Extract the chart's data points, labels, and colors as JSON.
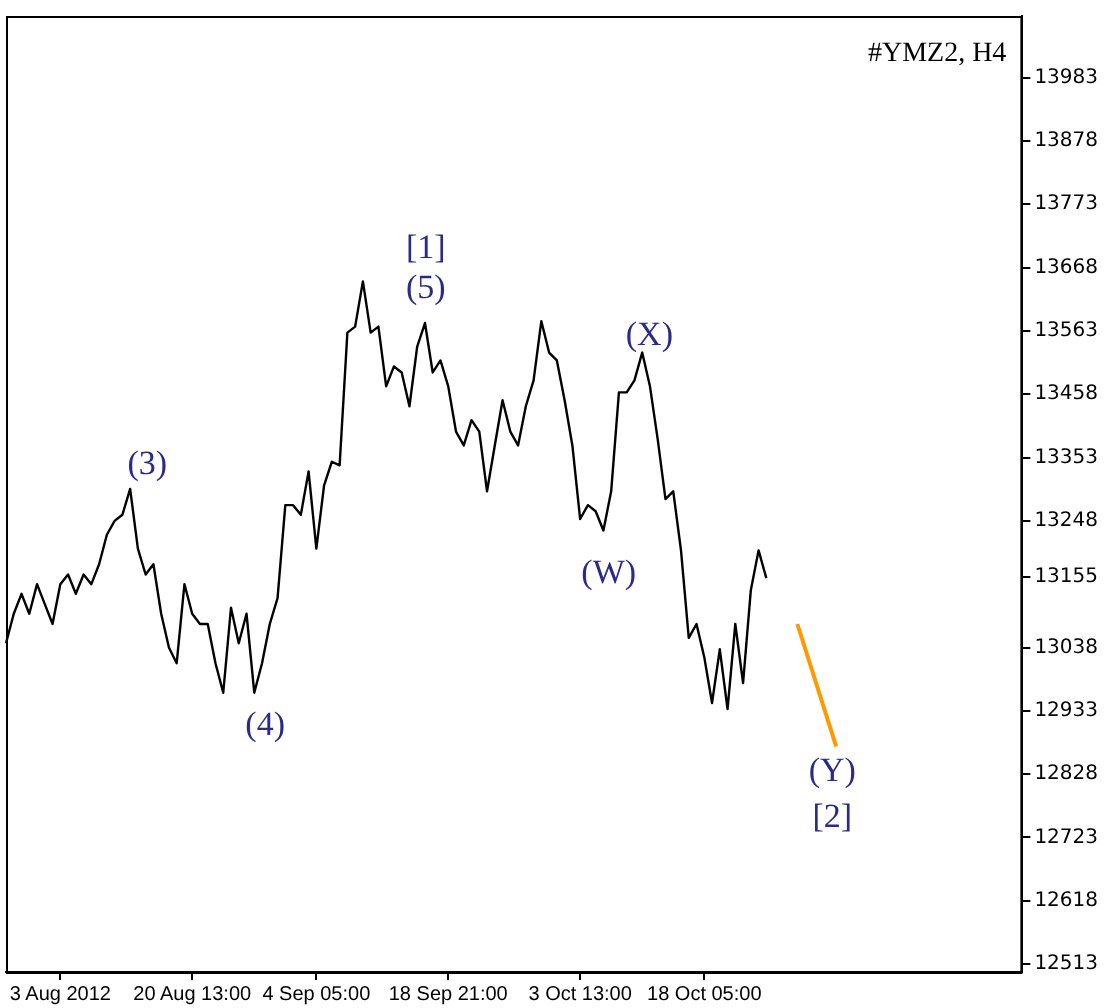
{
  "chart_data": {
    "type": "line",
    "title": "#YMZ2, H4",
    "categories": [
      null,
      null,
      null,
      null,
      null,
      null,
      null,
      "3 Aug 2012",
      null,
      null,
      null,
      null,
      null,
      null,
      null,
      null,
      null,
      null,
      null,
      null,
      null,
      null,
      null,
      null,
      "20 Aug 13:00",
      null,
      null,
      null,
      null,
      null,
      null,
      null,
      null,
      null,
      null,
      null,
      null,
      null,
      null,
      null,
      "4 Sep 05:00",
      null,
      null,
      null,
      null,
      null,
      null,
      null,
      null,
      null,
      null,
      null,
      null,
      null,
      null,
      null,
      null,
      "18 Sep 21:00",
      null,
      null,
      null,
      null,
      null,
      null,
      null,
      null,
      null,
      null,
      null,
      null,
      null,
      null,
      null,
      null,
      "3 Oct 13:00",
      null,
      null,
      null,
      null,
      null,
      null,
      null,
      null,
      null,
      null,
      null,
      null,
      null,
      null,
      null,
      "18 Oct 05:00",
      null,
      null,
      null,
      null,
      null,
      null,
      null,
      null,
      null,
      null,
      null,
      null,
      null,
      null,
      null,
      null,
      null,
      null,
      null,
      null,
      null,
      null,
      null,
      null,
      null,
      null,
      null,
      null,
      null,
      null,
      null,
      null,
      null,
      null,
      null,
      null,
      null,
      null,
      null,
      null,
      null
    ],
    "series": [
      {
        "color": "#000000",
        "values": [
          13045,
          13094,
          13127,
          13094,
          13143,
          13110,
          13077,
          13143,
          13159,
          13127,
          13159,
          13143,
          13176,
          13225,
          13248,
          13258,
          13301,
          13202,
          13159,
          13176,
          13094,
          13038,
          13012,
          13143,
          13094,
          13077,
          13077,
          13012,
          12963,
          13104,
          13045,
          13094,
          12963,
          13012,
          13077,
          13120,
          13274,
          13274,
          13258,
          13330,
          13202,
          13307,
          13346,
          13340,
          13560,
          13570,
          13645,
          13560,
          13570,
          13471,
          13504,
          13494,
          13438,
          13537,
          13576,
          13494,
          13514,
          13471,
          13396,
          13373,
          13415,
          13396,
          13297,
          13373,
          13448,
          13396,
          13373,
          13438,
          13481,
          13579,
          13527,
          13514,
          13448,
          13373,
          13251,
          13274,
          13264,
          13232,
          13297,
          13461,
          13461,
          13481,
          13527,
          13471,
          13383,
          13284,
          13297,
          13199,
          13054,
          13077,
          13022,
          12946,
          13035,
          12936,
          13077,
          12979,
          13133,
          13199,
          13153,
          null,
          null,
          null,
          null,
          null,
          null,
          null,
          null,
          null,
          null,
          null,
          null,
          null,
          null,
          null,
          null,
          null,
          null,
          null,
          null,
          null,
          null,
          null,
          null,
          null,
          null,
          null,
          null,
          null,
          null,
          null,
          null,
          null
        ]
      },
      {
        "color": "#ff9900",
        "values": [
          null,
          null,
          null,
          null,
          null,
          null,
          null,
          null,
          null,
          null,
          null,
          null,
          null,
          null,
          null,
          null,
          null,
          null,
          null,
          null,
          null,
          null,
          null,
          null,
          null,
          null,
          null,
          null,
          null,
          null,
          null,
          null,
          null,
          null,
          null,
          null,
          null,
          null,
          null,
          null,
          null,
          null,
          null,
          null,
          null,
          null,
          null,
          null,
          null,
          null,
          null,
          null,
          null,
          null,
          null,
          null,
          null,
          null,
          null,
          null,
          null,
          null,
          null,
          null,
          null,
          null,
          null,
          null,
          null,
          null,
          null,
          null,
          null,
          null,
          null,
          null,
          null,
          null,
          null,
          null,
          null,
          null,
          null,
          null,
          null,
          null,
          null,
          null,
          null,
          null,
          null,
          null,
          null,
          null,
          null,
          null,
          null,
          null,
          null,
          null,
          null,
          null,
          13077,
          null,
          null,
          null,
          null,
          12874,
          null,
          null,
          null,
          null,
          null,
          null,
          null,
          null,
          null,
          null,
          null,
          null,
          null,
          null,
          null,
          null,
          null,
          null,
          null,
          null,
          null,
          null,
          null,
          null
        ]
      }
    ],
    "ylim": [
      12500,
      14085
    ],
    "yticks": [
      12513,
      12618,
      12723,
      12828,
      12933,
      13038,
      13155,
      13248,
      13353,
      13458,
      13563,
      13668,
      13773,
      13878,
      13983
    ],
    "annotations": [
      "(3)",
      "(4)",
      "[1]",
      "(5)",
      "(X)",
      "(W)",
      "(Y)",
      "[2]"
    ],
    "grid": false,
    "legend": false,
    "marker": "none",
    "line_style": "solid"
  }
}
